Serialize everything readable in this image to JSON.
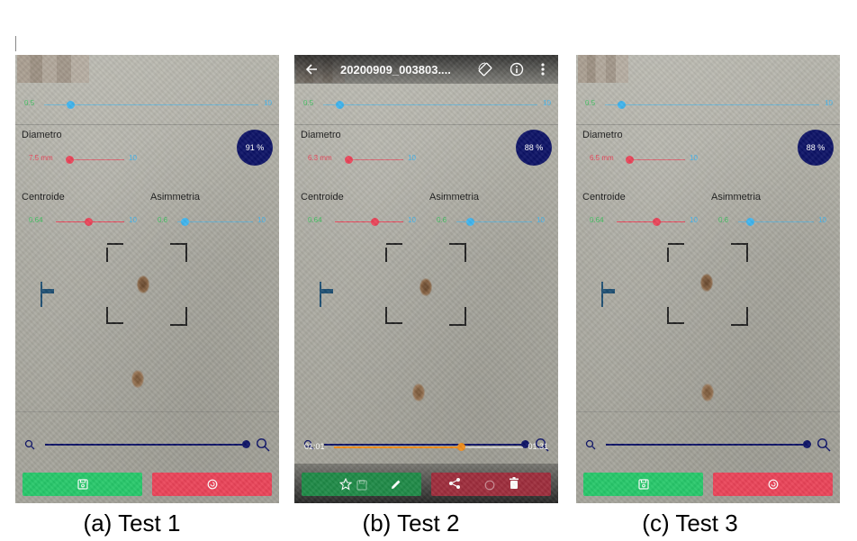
{
  "captions": [
    "(a) Test 1",
    "(b) Test 2",
    "(c) Test 3"
  ],
  "colors": {
    "navy": "#0d1366",
    "green": "#27c86a",
    "red": "#ea4459",
    "blue": "#3fb5ef",
    "orange": "#f08c1a"
  },
  "panel_1": {
    "top_slider": {
      "min": "0.5",
      "max": "10",
      "level": 0.1
    },
    "diametro_label": "Diametro",
    "diametro_slider": {
      "min": "7.5 mm",
      "max": "10",
      "level": 0.45
    },
    "badge": "91 %",
    "centroide_label": "Centroide",
    "centroide_slider": {
      "min": "0.64",
      "max": "10",
      "level": 0.5
    },
    "asimmetria_label": "Asimmetria",
    "asimmetria_slider": {
      "min": "0.6",
      "max": "10",
      "level": 0.1
    }
  },
  "panel_2": {
    "title": "20200909_003803....",
    "top_slider": {
      "min": "0.5",
      "max": "10",
      "level": 0.1
    },
    "diametro_label": "Diametro",
    "diametro_slider": {
      "min": "6.3 mm",
      "max": "10",
      "level": 0.45
    },
    "badge": "88 %",
    "centroide_label": "Centroide",
    "centroide_slider": {
      "min": "0.64",
      "max": "10",
      "level": 0.5
    },
    "asimmetria_label": "Asimmetria",
    "asimmetria_slider": {
      "min": "0.6",
      "max": "10",
      "level": 0.1
    },
    "video_elapsed": "01:01",
    "video_total": "01:31",
    "video_progress": 0.67
  },
  "panel_3": {
    "top_slider": {
      "min": "0.5",
      "max": "10",
      "level": 0.1
    },
    "diametro_label": "Diametro",
    "diametro_slider": {
      "min": "6.5 mm",
      "max": "10",
      "level": 0.45
    },
    "badge": "88 %",
    "centroide_label": "Centroide",
    "centroide_slider": {
      "min": "0.64",
      "max": "10",
      "level": 0.5
    },
    "asimmetria_label": "Asimmetria",
    "asimmetria_slider": {
      "min": "0.6",
      "max": "10",
      "level": 0.1
    }
  },
  "icons": [
    "back-arrow-icon",
    "rotate-icon",
    "info-icon",
    "more-vert-icon",
    "star-icon",
    "save-icon",
    "edit-icon",
    "share-icon",
    "reset-icon",
    "delete-icon",
    "zoom-out-icon",
    "zoom-in-icon"
  ]
}
